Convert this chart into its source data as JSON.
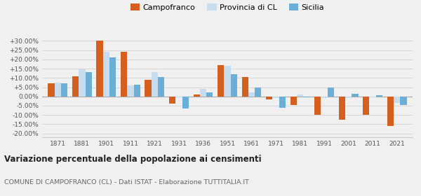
{
  "years": [
    1871,
    1881,
    1901,
    1911,
    1921,
    1931,
    1936,
    1951,
    1961,
    1971,
    1981,
    1991,
    2001,
    2011,
    2021
  ],
  "campofranco": [
    7.0,
    11.0,
    30.0,
    24.0,
    9.0,
    -4.0,
    1.0,
    17.0,
    10.5,
    -1.5,
    -4.5,
    -10.0,
    -12.5,
    -10.0,
    -16.0
  ],
  "provincia_cl": [
    7.5,
    14.5,
    24.0,
    6.0,
    13.0,
    -0.5,
    4.0,
    16.5,
    2.0,
    -1.0,
    1.0,
    -1.0,
    -1.0,
    -0.5,
    -3.5
  ],
  "sicilia": [
    7.0,
    13.0,
    21.0,
    6.5,
    10.5,
    -6.5,
    2.0,
    12.0,
    5.0,
    -6.0,
    -0.5,
    5.0,
    1.5,
    0.5,
    -4.5
  ],
  "color_campofranco": "#d45f1e",
  "color_provincia": "#c5ddef",
  "color_sicilia": "#6baed6",
  "title": "Variazione percentuale della popolazione ai censimenti",
  "subtitle": "COMUNE DI CAMPOFRANCO (CL) - Dati ISTAT - Elaborazione TUTTITALIA.IT",
  "ylim": [
    -22,
    33
  ],
  "yticks": [
    -20,
    -15,
    -10,
    -5,
    0,
    5,
    10,
    15,
    20,
    25,
    30
  ],
  "background_color": "#f0f0f0"
}
